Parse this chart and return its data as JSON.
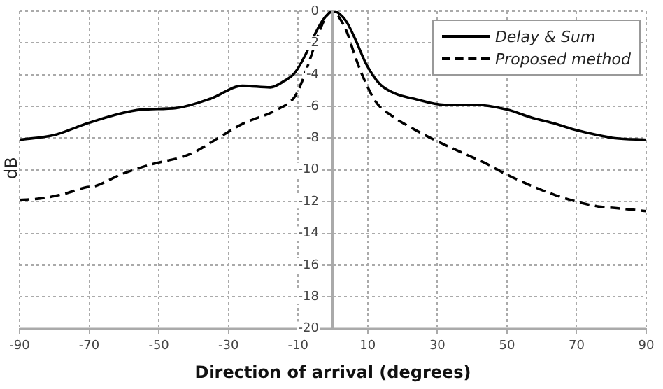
{
  "chart_data": {
    "type": "line",
    "xlabel": "Direction of arrival (degrees)",
    "ylabel": "dB",
    "xlim": [
      -90,
      90
    ],
    "xticks": [
      -90,
      -70,
      -50,
      -30,
      -10,
      10,
      30,
      50,
      70,
      90
    ],
    "ylim": [
      -20,
      0
    ],
    "yticks": [
      0,
      -2,
      -4,
      -6,
      -8,
      -10,
      -12,
      -14,
      -16,
      -18,
      -20
    ],
    "grid": true,
    "legend": "top right",
    "marker": "none",
    "series": [
      {
        "name": "Delay & Sum",
        "color": "#000000",
        "line_style": "solid",
        "x": [
          -90,
          -80,
          -71,
          -62,
          -55,
          -45,
          -35,
          -26,
          -18,
          -14,
          -11,
          -8,
          -5.5,
          -3,
          -1,
          0,
          1.5,
          4,
          6.5,
          9.5,
          13.5,
          18,
          23,
          32,
          41,
          50,
          57,
          64,
          70,
          76,
          81,
          90
        ],
        "values": [
          -8.1,
          -7.8,
          -7.1,
          -6.5,
          -6.2,
          -6.1,
          -5.5,
          -4.7,
          -4.8,
          -4.4,
          -3.9,
          -2.8,
          -1.6,
          -0.6,
          -0.1,
          0,
          -0.1,
          -0.7,
          -1.8,
          -3.3,
          -4.6,
          -5.2,
          -5.5,
          -5.9,
          -5.9,
          -6.2,
          -6.7,
          -7.1,
          -7.5,
          -7.8,
          -8.0,
          -8.1
        ]
      },
      {
        "name": "Proposed method",
        "color": "#000000",
        "line_style": "dashed",
        "x": [
          -90,
          -84,
          -77,
          -71,
          -68,
          -61,
          -53,
          -41,
          -33,
          -26,
          -16,
          -11,
          -9,
          -7,
          -5,
          -3.4,
          -1.5,
          0,
          1.5,
          4,
          6,
          8.2,
          12.3,
          17,
          23,
          30,
          37,
          44,
          50,
          57,
          64,
          70,
          76,
          81,
          90
        ],
        "values": [
          -11.9,
          -11.8,
          -11.5,
          -11.1,
          -11.0,
          -10.3,
          -9.7,
          -9.0,
          -8.0,
          -7.1,
          -6.2,
          -5.4,
          -4.5,
          -3.3,
          -2.0,
          -1.0,
          -0.2,
          0,
          -0.3,
          -1.3,
          -2.6,
          -3.9,
          -5.7,
          -6.6,
          -7.4,
          -8.2,
          -8.9,
          -9.6,
          -10.3,
          -11.0,
          -11.6,
          -12.0,
          -12.3,
          -12.4,
          -12.6
        ]
      }
    ]
  }
}
